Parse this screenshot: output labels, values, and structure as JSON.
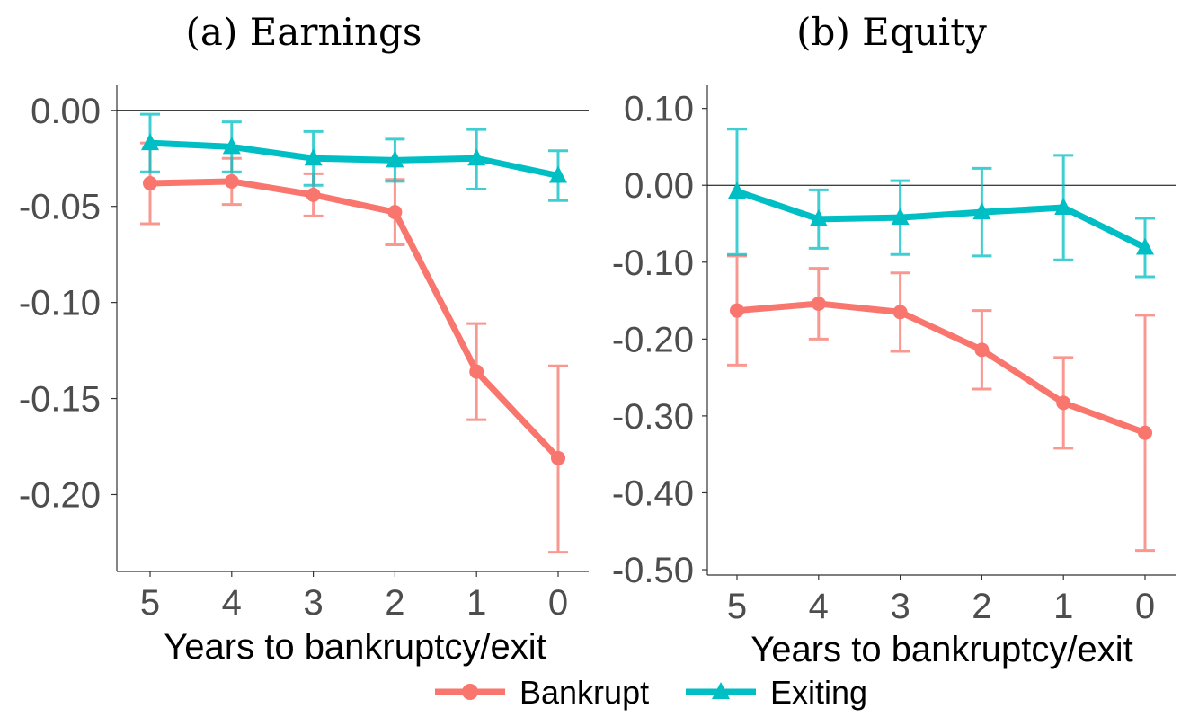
{
  "colors": {
    "bankrupt": "#F8766D",
    "exiting": "#00BFC4",
    "axis": "#333333",
    "tick_text": "#4d4d4d"
  },
  "legend": {
    "items": [
      {
        "label": "Bankrupt",
        "marker": "circle",
        "color_key": "bankrupt"
      },
      {
        "label": "Exiting",
        "marker": "triangle",
        "color_key": "exiting"
      }
    ],
    "placement": "bottom"
  },
  "chart_data": [
    {
      "type": "line",
      "title": "(a) Earnings",
      "xlabel": "Years to bankruptcy/exit",
      "ylabel": "",
      "x": [
        5,
        4,
        3,
        2,
        1,
        0
      ],
      "x_tick_labels": [
        "5",
        "4",
        "3",
        "2",
        "1",
        "0"
      ],
      "ylim": [
        -0.24,
        0.013
      ],
      "yticks": [
        0.0,
        -0.05,
        -0.1,
        -0.15,
        -0.2
      ],
      "y_tick_labels": [
        "0.00",
        "-0.05",
        "-0.10",
        "-0.15",
        "-0.20"
      ],
      "hline": 0,
      "grid": false,
      "series": [
        {
          "name": "Bankrupt",
          "color_key": "bankrupt",
          "marker": "circle",
          "values": [
            -0.038,
            -0.037,
            -0.044,
            -0.053,
            -0.136,
            -0.181
          ],
          "lower": [
            -0.059,
            -0.049,
            -0.055,
            -0.07,
            -0.161,
            -0.23
          ],
          "upper": [
            -0.017,
            -0.025,
            -0.033,
            -0.036,
            -0.111,
            -0.133
          ]
        },
        {
          "name": "Exiting",
          "color_key": "exiting",
          "marker": "triangle",
          "values": [
            -0.017,
            -0.019,
            -0.025,
            -0.026,
            -0.025,
            -0.034
          ],
          "lower": [
            -0.032,
            -0.032,
            -0.039,
            -0.037,
            -0.041,
            -0.047
          ],
          "upper": [
            -0.002,
            -0.006,
            -0.011,
            -0.015,
            -0.01,
            -0.021
          ]
        }
      ]
    },
    {
      "type": "line",
      "title": "(b) Equity",
      "xlabel": "Years to bankruptcy/exit",
      "ylabel": "",
      "x": [
        5,
        4,
        3,
        2,
        1,
        0
      ],
      "x_tick_labels": [
        "5",
        "4",
        "3",
        "2",
        "1",
        "0"
      ],
      "ylim": [
        -0.507,
        0.13
      ],
      "yticks": [
        0.1,
        0.0,
        -0.1,
        -0.2,
        -0.3,
        -0.4,
        -0.5
      ],
      "y_tick_labels": [
        "0.10",
        "0.00",
        "-0.10",
        "-0.20",
        "-0.30",
        "-0.40",
        "-0.50"
      ],
      "hline": 0,
      "grid": false,
      "series": [
        {
          "name": "Bankrupt",
          "color_key": "bankrupt",
          "marker": "circle",
          "values": [
            -0.163,
            -0.154,
            -0.165,
            -0.214,
            -0.283,
            -0.322
          ],
          "lower": [
            -0.234,
            -0.2,
            -0.216,
            -0.265,
            -0.342,
            -0.475
          ],
          "upper": [
            -0.092,
            -0.108,
            -0.114,
            -0.163,
            -0.224,
            -0.169
          ]
        },
        {
          "name": "Exiting",
          "color_key": "exiting",
          "marker": "triangle",
          "values": [
            -0.008,
            -0.044,
            -0.042,
            -0.035,
            -0.029,
            -0.081
          ],
          "lower": [
            -0.09,
            -0.082,
            -0.09,
            -0.092,
            -0.097,
            -0.119
          ],
          "upper": [
            0.073,
            -0.006,
            0.006,
            0.022,
            0.039,
            -0.043
          ]
        }
      ]
    }
  ]
}
